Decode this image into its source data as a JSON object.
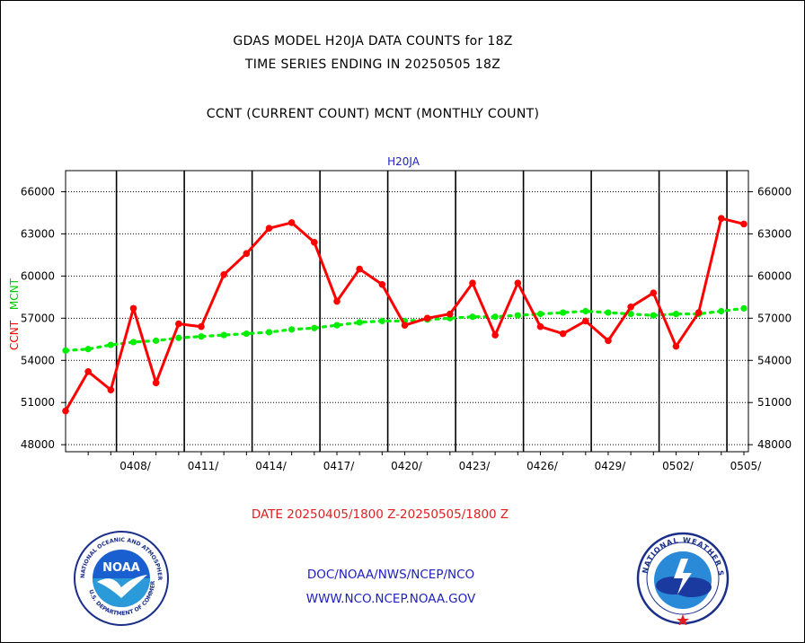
{
  "header": {
    "line1": "GDAS MODEL H20JA DATA COUNTS for 18Z",
    "line2": "TIME SERIES ENDING IN 20250505 18Z",
    "line3": "CCNT (CURRENT COUNT) MCNT (MONTHLY COUNT)"
  },
  "footer": {
    "date_range": "DATE 20250405/1800 Z-20250505/1800 Z",
    "link1": "DOC/NOAA/NWS/NCEP/NCO",
    "link2": "WWW.NCO.NCEP.NOAA.GOV"
  },
  "logos": {
    "noaa_text": "NOAA",
    "noaa_ring": "NATIONAL OCEANIC AND ATMOSPHERIC ADMINISTRATION",
    "noaa_ring_bottom": "U.S. DEPARTMENT OF COMMERCE",
    "nws_ring": "NATIONAL WEATHER SERVICE"
  },
  "chart_data": {
    "type": "line",
    "title": "H20JA",
    "ylabel_left_1": "CCNT",
    "ylabel_left_2": "MCNT",
    "ylim": [
      47500,
      67500
    ],
    "yticks": [
      48000,
      51000,
      54000,
      57000,
      60000,
      63000,
      66000
    ],
    "ytick_labels": [
      "48000",
      "51000",
      "54000",
      "57000",
      "60000",
      "63000",
      "66000"
    ],
    "xticks": [
      {
        "label": "0408/",
        "day": 3
      },
      {
        "label": "0411/",
        "day": 6
      },
      {
        "label": "0414/",
        "day": 9
      },
      {
        "label": "0417/",
        "day": 12
      },
      {
        "label": "0420/",
        "day": 15
      },
      {
        "label": "0423/",
        "day": 18
      },
      {
        "label": "0426/",
        "day": 21
      },
      {
        "label": "0429/",
        "day": 24
      },
      {
        "label": "0502/",
        "day": 27
      },
      {
        "label": "0505/",
        "day": 30
      }
    ],
    "xlim": [
      0,
      30.2
    ],
    "vertical_grid_days": [
      2.25,
      5.25,
      8.25,
      11.25,
      14.25,
      17.25,
      20.25,
      23.25,
      26.25,
      29.25
    ],
    "grid": true,
    "series": [
      {
        "name": "CCNT",
        "color": "#ff0000",
        "x": [
          0,
          1,
          2,
          3,
          4,
          5,
          6,
          7,
          8,
          9,
          10,
          11,
          12,
          13,
          14,
          15,
          16,
          17,
          18,
          19,
          20,
          21,
          22,
          23,
          24,
          25,
          26,
          27,
          28,
          29,
          30
        ],
        "values": [
          50400,
          53200,
          51900,
          57700,
          52400,
          56600,
          56400,
          60100,
          61600,
          63400,
          63800,
          62400,
          58200,
          60500,
          59400,
          56500,
          57000,
          57300,
          59500,
          55800,
          59500,
          56400,
          55900,
          56800,
          55400,
          57800,
          58800,
          55000,
          57400,
          64100,
          63700
        ]
      },
      {
        "name": "MCNT",
        "color": "#00ee00",
        "x": [
          0,
          1,
          2,
          3,
          4,
          5,
          6,
          7,
          8,
          9,
          10,
          11,
          12,
          13,
          14,
          15,
          16,
          17,
          18,
          19,
          20,
          21,
          22,
          23,
          24,
          25,
          26,
          27,
          28,
          29,
          30
        ],
        "values": [
          54700,
          54800,
          55100,
          55300,
          55400,
          55600,
          55700,
          55800,
          55900,
          56000,
          56200,
          56300,
          56500,
          56700,
          56800,
          56800,
          56900,
          57000,
          57100,
          57100,
          57200,
          57300,
          57400,
          57500,
          57400,
          57300,
          57200,
          57300,
          57300,
          57500,
          57700
        ]
      }
    ]
  }
}
